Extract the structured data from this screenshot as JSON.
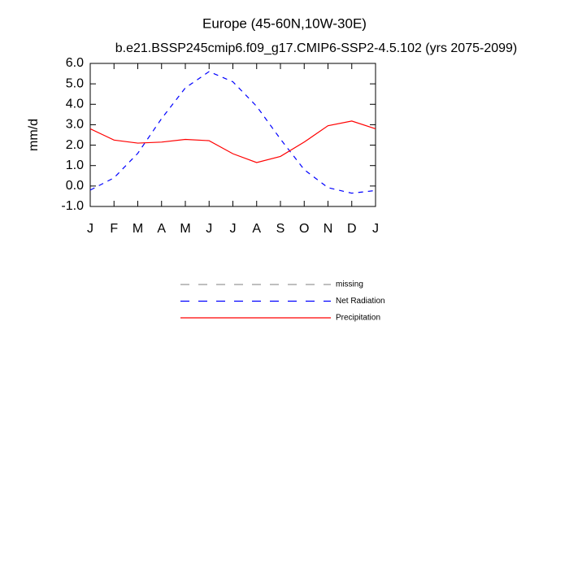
{
  "chart_data": {
    "type": "line",
    "title": "Europe (45-60N,10W-30E)",
    "subtitle": "b.e21.BSSP245cmip6.f09_g17.CMIP6-SSP2-4.5.102 (yrs 2075-2099)",
    "y_label": "mm/d",
    "categories": [
      "J",
      "F",
      "M",
      "A",
      "M",
      "J",
      "J",
      "A",
      "S",
      "O",
      "N",
      "D",
      "J"
    ],
    "ylim": [
      -1,
      6
    ],
    "yticks": [
      {
        "value": -1,
        "label": "-1.0"
      },
      {
        "value": 0,
        "label": "0.0"
      },
      {
        "value": 1,
        "label": "1.0"
      },
      {
        "value": 2,
        "label": "2.0"
      },
      {
        "value": 3,
        "label": "3.0"
      },
      {
        "value": 4,
        "label": "4.0"
      },
      {
        "value": 5,
        "label": "5.0"
      },
      {
        "value": 6,
        "label": "6.0"
      }
    ],
    "grid": false,
    "series": [
      {
        "name": "missing",
        "color": "#999999",
        "dashed": true,
        "values": [
          null,
          null,
          null,
          null,
          null,
          null,
          null,
          null,
          null,
          null,
          null,
          null,
          null
        ]
      },
      {
        "name": "Net Radiation",
        "color": "#0000ff",
        "dashed": true,
        "values": [
          -0.2,
          0.4,
          1.6,
          3.3,
          4.8,
          5.6,
          5.1,
          3.9,
          2.3,
          0.8,
          -0.08,
          -0.35,
          -0.22
        ]
      },
      {
        "name": "Precipitation",
        "color": "#ff0000",
        "dashed": false,
        "values": [
          2.8,
          2.25,
          2.1,
          2.15,
          2.28,
          2.22,
          1.58,
          1.15,
          1.45,
          2.15,
          2.95,
          3.18,
          2.8
        ]
      }
    ]
  }
}
